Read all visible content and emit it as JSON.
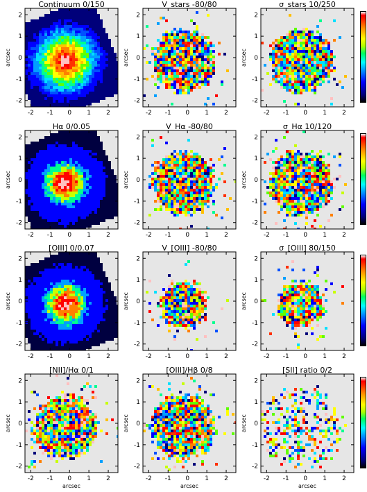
{
  "axes": {
    "xlabel": "arcsec",
    "ylabel": "arcsec",
    "xticks": [
      "-2",
      "-1",
      "0",
      "1",
      "2"
    ],
    "yticks": [
      "-2",
      "-1",
      "0",
      "1",
      "2"
    ]
  },
  "panels": [
    {
      "title": "Continuum    0/150",
      "kind": "continuum",
      "show_xlabel": false
    },
    {
      "title": "V_stars  -80/80",
      "kind": "velocity",
      "show_xlabel": false
    },
    {
      "title": "σ_stars  10/250",
      "kind": "dispersion",
      "show_xlabel": false
    },
    {
      "title": "Hα   0/0.05",
      "kind": "flux",
      "show_xlabel": false
    },
    {
      "title": "V_Hα  -80/80",
      "kind": "velocity2",
      "show_xlabel": false
    },
    {
      "title": "σ_Hα  10/120",
      "kind": "dispersion2",
      "show_xlabel": false
    },
    {
      "title": "[OIII]   0/0.07",
      "kind": "flux2",
      "show_xlabel": false
    },
    {
      "title": "V_[OIII]  -80/80",
      "kind": "compact",
      "show_xlabel": false
    },
    {
      "title": "σ_[OIII]  80/150",
      "kind": "compact2",
      "show_xlabel": false
    },
    {
      "title": "[NII]/Hα   0/1",
      "kind": "ratio1",
      "show_xlabel": true
    },
    {
      "title": "[OIII]/Hβ   0/8",
      "kind": "ratio2",
      "show_xlabel": true
    },
    {
      "title": "[SII] ratio 0/2",
      "kind": "ratio3",
      "show_xlabel": true
    }
  ],
  "colors": {
    "background": "#e6e6e6",
    "palette": [
      "#00007a",
      "#0000ff",
      "#0050ff",
      "#00a0ff",
      "#00e0ff",
      "#00ff90",
      "#60ff00",
      "#c8ff00",
      "#ffff00",
      "#ffc000",
      "#ff8000",
      "#ff3000",
      "#ff0000",
      "#ffc0c0",
      "#a0ffff",
      "#000000"
    ]
  }
}
